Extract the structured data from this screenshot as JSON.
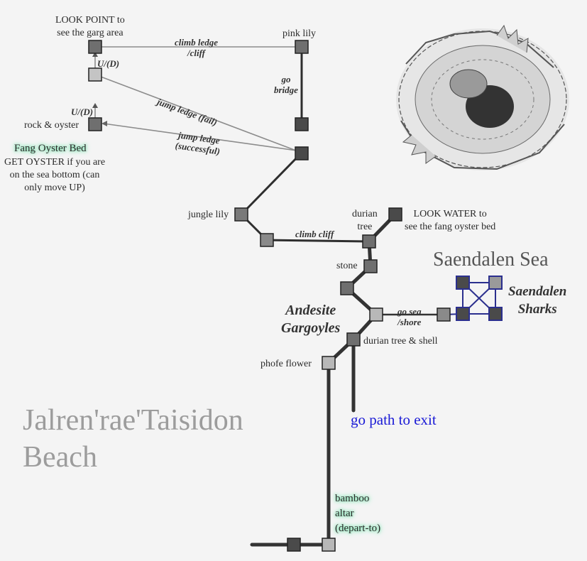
{
  "map": {
    "region_name": "Saendalen Sea",
    "beach_title_line1": "Jalren'rae'Taisidon",
    "beach_title_line2": "Beach",
    "area_andesite_line1": "Andesite",
    "area_andesite_line2": "Gargoyles",
    "area_sharks_line1": "Saendalen",
    "area_sharks_line2": "Sharks",
    "exit_label": "go path to exit"
  },
  "rooms": {
    "look_point_line1": "LOOK POINT to",
    "look_point_line2": "see the garg area",
    "pink_lily": "pink lily",
    "rock_oyster": "rock & oyster",
    "fang_oyster_bed": "Fang Oyster Bed",
    "oyster_note_line1": "GET OYSTER if you are",
    "oyster_note_line2": "on the sea bottom (can",
    "oyster_note_line3": "only move UP)",
    "jungle_lily": "jungle lily",
    "durian_tree_line1": "durian",
    "durian_tree_line2": "tree",
    "look_water_line1": "LOOK WATER to",
    "look_water_line2": "see the fang oyster bed",
    "stone": "stone",
    "durian_tree_shell": "durian tree & shell",
    "phofe_flower": "phofe flower",
    "bamboo_altar_line1": "bamboo",
    "bamboo_altar_line2": "altar",
    "bamboo_altar_line3": "(depart-to)"
  },
  "paths": {
    "climb_ledge_line1": "climb ledge",
    "climb_ledge_line2": "/cliff",
    "up_down_top": "U/(D)",
    "up_down_bottom": "U/(D)",
    "go_bridge_line1": "go",
    "go_bridge_line2": "bridge",
    "jump_fail": "jump ledge (fail)",
    "jump_success_line1": "jump ledge",
    "jump_success_line2": "(successful)",
    "climb_cliff": "climb cliff",
    "go_sea_line1": "go sea",
    "go_sea_line2": "/shore"
  },
  "colors": {
    "room_dark": "#4a4a4a",
    "room_mid": "#7a7a7a",
    "room_light": "#b8b8b8",
    "path_dark": "#2e2e2e",
    "path_light": "#8c8c8c",
    "shark_blue": "#2b2f8e",
    "exit_blue": "#1a1ad6",
    "highlight_glow": "#7fe3b0"
  },
  "illustration": "coiled-serpent-drawing"
}
